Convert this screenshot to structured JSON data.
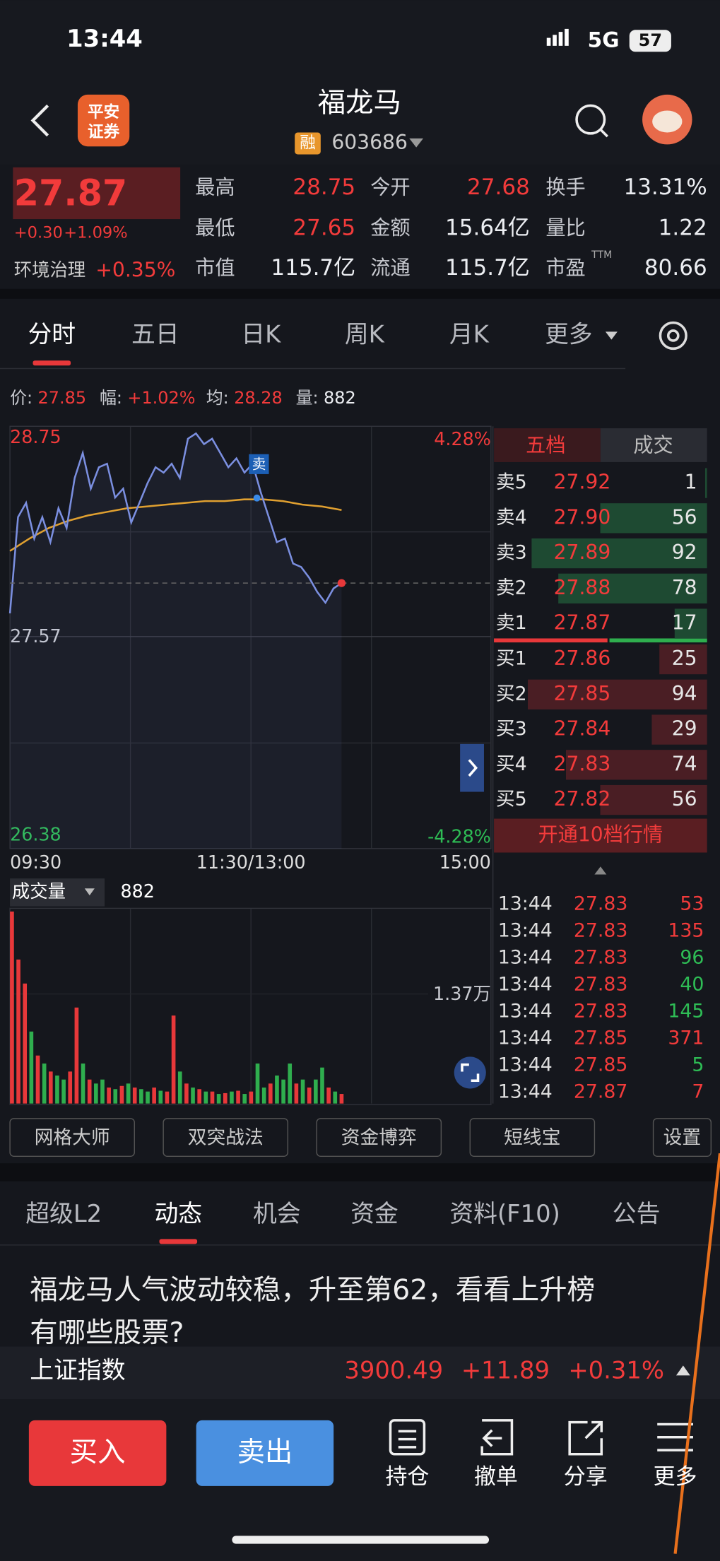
{
  "status_bar": {
    "time": "13:44",
    "network": "5G",
    "battery": "57"
  },
  "header": {
    "title": "福龙马",
    "broker_logo": [
      "平安",
      "证券"
    ],
    "margin_badge": "融",
    "code": "603686"
  },
  "quote": {
    "price": "27.87",
    "change": "+0.30",
    "change_pct": "+1.09%",
    "sector": "环境治理",
    "sector_pct": "+0.35%",
    "stats": [
      {
        "label": "最高",
        "value": "28.75"
      },
      {
        "label": "今开",
        "value": "27.68"
      },
      {
        "label": "换手",
        "value": "13.31%"
      },
      {
        "label": "最低",
        "value": "27.65"
      },
      {
        "label": "金额",
        "value": "15.64亿"
      },
      {
        "label": "量比",
        "value": "1.22"
      },
      {
        "label": "市值",
        "value": "115.7亿"
      },
      {
        "label": "流通",
        "value": "115.7亿"
      },
      {
        "label": "市盈",
        "superscript": "TTM",
        "value": "80.66"
      }
    ]
  },
  "period_tabs": [
    "分时",
    "五日",
    "日K",
    "周K",
    "月K",
    "更多"
  ],
  "info_line": [
    {
      "label": "价:",
      "value": "27.85"
    },
    {
      "label": "幅:",
      "value": "+1.02%"
    },
    {
      "label": "均:",
      "value": "28.28"
    },
    {
      "label": "量:",
      "value": "882"
    }
  ],
  "intraday": {
    "ylim": [
      26.38,
      28.75
    ],
    "yticks": [
      26.38,
      27.57,
      28.75
    ],
    "pct_labels": [
      "4.28%",
      "-4.28%"
    ],
    "time_labels": [
      "09:30",
      "11:30/13:00",
      "15:00"
    ],
    "trade_marker": "卖",
    "price": [
      27.7,
      28.24,
      28.32,
      28.12,
      28.24,
      28.1,
      28.29,
      28.18,
      28.46,
      28.6,
      28.4,
      28.52,
      28.54,
      28.35,
      28.4,
      28.21,
      28.32,
      28.43,
      28.52,
      28.49,
      28.54,
      28.46,
      28.68,
      28.71,
      28.65,
      28.68,
      28.6,
      28.52,
      28.57,
      28.49,
      28.54,
      28.38,
      28.24,
      28.1,
      28.12,
      27.98,
      27.96,
      27.9,
      27.82,
      27.76,
      27.84,
      27.87
    ],
    "average": [
      28.05,
      28.12,
      28.18,
      28.22,
      28.25,
      28.27,
      28.29,
      28.3,
      28.31,
      28.32,
      28.33,
      28.33,
      28.34,
      28.34,
      28.33,
      28.31,
      28.3,
      28.28
    ]
  },
  "volume": {
    "label": "成交量",
    "current": "882",
    "ylim": [
      0,
      24400
    ],
    "yticks": [
      {
        "value": 13700,
        "label": "1.37万"
      }
    ],
    "values": [
      24000,
      18000,
      15000,
      9000,
      6000,
      5000,
      4000,
      3500,
      3000,
      4000,
      12000,
      5000,
      3000,
      2500,
      3000,
      2000,
      1800,
      2200,
      2500,
      2000,
      1800,
      1500,
      2000,
      1600,
      1500,
      11000,
      4000,
      2500,
      2000,
      1800,
      1500,
      1500,
      1200,
      1300,
      1500,
      1600,
      1200,
      1500,
      5000,
      2000,
      2500,
      3500,
      3000,
      5000,
      2500,
      3000,
      2000,
      3000,
      4500,
      2000,
      1500,
      1200
    ],
    "colors": [
      "#e8383a",
      "#e8383a",
      "#e8383a",
      "#2fae4e",
      "#e8383a",
      "#2fae4e",
      "#e8383a",
      "#2fae4e",
      "#2fae4e",
      "#e8383a",
      "#e8383a",
      "#2fae4e",
      "#e8383a",
      "#2fae4e",
      "#2fae4e",
      "#e8383a",
      "#2fae4e",
      "#e8383a",
      "#2fae4e",
      "#e8383a",
      "#2fae4e",
      "#2fae4e",
      "#e8383a",
      "#2fae4e",
      "#e8383a",
      "#e8383a",
      "#2fae4e",
      "#e8383a",
      "#2fae4e",
      "#e8383a",
      "#2fae4e",
      "#e8383a",
      "#2fae4e",
      "#e8383a",
      "#2fae4e",
      "#e8383a",
      "#2fae4e",
      "#e8383a",
      "#2fae4e",
      "#2fae4e",
      "#e8383a",
      "#2fae4e",
      "#2fae4e",
      "#2fae4e",
      "#e8383a",
      "#2fae4e",
      "#e8383a",
      "#2fae4e",
      "#2fae4e",
      "#e8383a",
      "#2fae4e",
      "#e8383a"
    ]
  },
  "order_book": {
    "tabs": [
      "五档",
      "成交"
    ],
    "asks": [
      {
        "label": "卖5",
        "price": "27.92",
        "volume": 1
      },
      {
        "label": "卖4",
        "price": "27.90",
        "volume": 56
      },
      {
        "label": "卖3",
        "price": "27.89",
        "volume": 92
      },
      {
        "label": "卖2",
        "price": "27.88",
        "volume": 78
      },
      {
        "label": "卖1",
        "price": "27.87",
        "volume": 17
      }
    ],
    "bids": [
      {
        "label": "买1",
        "price": "27.86",
        "volume": 25
      },
      {
        "label": "买2",
        "price": "27.85",
        "volume": 94
      },
      {
        "label": "买3",
        "price": "27.84",
        "volume": 29
      },
      {
        "label": "买4",
        "price": "27.83",
        "volume": 74
      },
      {
        "label": "买5",
        "price": "27.82",
        "volume": 56
      }
    ],
    "upgrade": "开通10档行情"
  },
  "trades": [
    {
      "time": "13:44",
      "price": "27.83",
      "volume": 53,
      "color": "#f23b3b"
    },
    {
      "time": "13:44",
      "price": "27.83",
      "volume": 135,
      "color": "#f23b3b"
    },
    {
      "time": "13:44",
      "price": "27.83",
      "volume": 96,
      "color": "#2ebd55"
    },
    {
      "time": "13:44",
      "price": "27.83",
      "volume": 40,
      "color": "#2ebd55"
    },
    {
      "time": "13:44",
      "price": "27.83",
      "volume": 145,
      "color": "#2ebd55"
    },
    {
      "time": "13:44",
      "price": "27.85",
      "volume": 371,
      "color": "#f23b3b"
    },
    {
      "time": "13:44",
      "price": "27.85",
      "volume": 5,
      "color": "#2ebd55"
    },
    {
      "time": "13:44",
      "price": "27.87",
      "volume": 7,
      "color": "#f23b3b"
    }
  ],
  "tools": [
    "网格大师",
    "双突战法",
    "资金博弈",
    "短线宝",
    "设置"
  ],
  "section_tabs": [
    "超级L2",
    "动态",
    "机会",
    "资金",
    "资料(F10)",
    "公告"
  ],
  "news": [
    "福龙马人气波动较稳，升至第62，看看上升榜",
    "有哪些股票?"
  ],
  "index_bar": {
    "name": "上证指数",
    "value": "3900.49",
    "change": "+11.89",
    "change_pct": "+0.31%"
  },
  "toolbar": {
    "buy": "买入",
    "sell": "卖出",
    "items": [
      "持仓",
      "撤单",
      "分享",
      "更多"
    ]
  }
}
